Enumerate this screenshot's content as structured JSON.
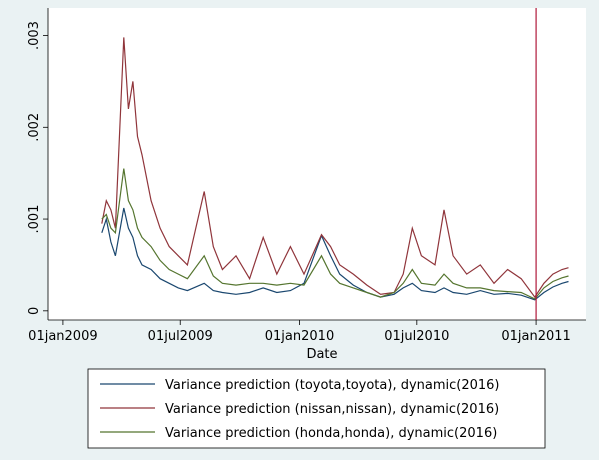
{
  "chart_data": {
    "type": "line",
    "xlabel": "Date",
    "x": [
      "2009-03-02",
      "2009-03-09",
      "2009-03-16",
      "2009-03-23",
      "2009-04-05",
      "2009-04-12",
      "2009-04-19",
      "2009-04-26",
      "2009-05-03",
      "2009-05-17",
      "2009-05-31",
      "2009-06-14",
      "2009-06-28",
      "2009-07-12",
      "2009-08-07",
      "2009-08-21",
      "2009-09-04",
      "2009-09-25",
      "2009-10-16",
      "2009-11-06",
      "2009-11-27",
      "2009-12-18",
      "2010-01-08",
      "2010-02-04",
      "2010-02-18",
      "2010-03-04",
      "2010-03-25",
      "2010-04-15",
      "2010-05-06",
      "2010-05-27",
      "2010-06-10",
      "2010-06-24",
      "2010-07-08",
      "2010-07-29",
      "2010-08-12",
      "2010-08-26",
      "2010-09-16",
      "2010-10-07",
      "2010-10-28",
      "2010-11-18",
      "2010-12-09",
      "2010-12-30",
      "2011-01-13",
      "2011-01-27",
      "2011-02-10",
      "2011-02-20"
    ],
    "series": [
      {
        "name": "Variance prediction (toyota,toyota), dynamic(2016)",
        "color": "#1a476f",
        "values": [
          0.00085,
          0.001,
          0.00075,
          0.0006,
          0.00112,
          0.0009,
          0.0008,
          0.0006,
          0.0005,
          0.00045,
          0.00035,
          0.0003,
          0.00025,
          0.00022,
          0.0003,
          0.00022,
          0.0002,
          0.00018,
          0.0002,
          0.00025,
          0.0002,
          0.00022,
          0.0003,
          0.00082,
          0.0006,
          0.0004,
          0.00028,
          0.0002,
          0.00015,
          0.00018,
          0.00025,
          0.0003,
          0.00022,
          0.0002,
          0.00025,
          0.0002,
          0.00018,
          0.00022,
          0.00018,
          0.00019,
          0.00017,
          0.00012,
          0.0002,
          0.00026,
          0.0003,
          0.00032
        ]
      },
      {
        "name": "Variance prediction (nissan,nissan), dynamic(2016)",
        "color": "#90353b",
        "values": [
          0.00095,
          0.0012,
          0.0011,
          0.0009,
          0.00298,
          0.0022,
          0.0025,
          0.0019,
          0.0017,
          0.0012,
          0.0009,
          0.0007,
          0.0006,
          0.0005,
          0.0013,
          0.0007,
          0.00045,
          0.0006,
          0.00035,
          0.0008,
          0.0004,
          0.0007,
          0.0004,
          0.00083,
          0.0007,
          0.0005,
          0.0004,
          0.00028,
          0.00018,
          0.0002,
          0.0004,
          0.0009,
          0.0006,
          0.0005,
          0.0011,
          0.0006,
          0.0004,
          0.0005,
          0.0003,
          0.00045,
          0.00035,
          0.00015,
          0.0003,
          0.0004,
          0.00045,
          0.00047
        ]
      },
      {
        "name": "Variance prediction (honda,honda), dynamic(2016)",
        "color": "#55752f",
        "values": [
          0.001,
          0.00105,
          0.0009,
          0.00085,
          0.00155,
          0.0012,
          0.0011,
          0.0009,
          0.0008,
          0.0007,
          0.00055,
          0.00045,
          0.0004,
          0.00035,
          0.0006,
          0.00038,
          0.0003,
          0.00028,
          0.0003,
          0.0003,
          0.00028,
          0.0003,
          0.00028,
          0.0006,
          0.0004,
          0.0003,
          0.00025,
          0.0002,
          0.00015,
          0.0002,
          0.0003,
          0.00045,
          0.0003,
          0.00028,
          0.0004,
          0.0003,
          0.00025,
          0.00025,
          0.00022,
          0.00021,
          0.0002,
          0.00013,
          0.00025,
          0.00032,
          0.00036,
          0.00038
        ]
      }
    ],
    "xlim": [
      "2008-12-09",
      "2011-03-19"
    ],
    "xticks": [
      {
        "value": "2009-01-01",
        "label": "01jan2009"
      },
      {
        "value": "2009-07-01",
        "label": "01jul2009"
      },
      {
        "value": "2010-01-01",
        "label": "01jan2010"
      },
      {
        "value": "2010-07-01",
        "label": "01jul2010"
      },
      {
        "value": "2011-01-01",
        "label": "01jan2011"
      }
    ],
    "ylim": [
      -0.0001,
      0.0033
    ],
    "yticks": [
      0,
      {
        "value": 0.001,
        "label": ".001"
      },
      {
        "value": 0.002,
        "label": ".002"
      },
      {
        "value": 0.003,
        "label": ".003"
      }
    ],
    "xline": {
      "value": "2011-01-01",
      "color": "#b0183a"
    },
    "legend": "bottom"
  }
}
